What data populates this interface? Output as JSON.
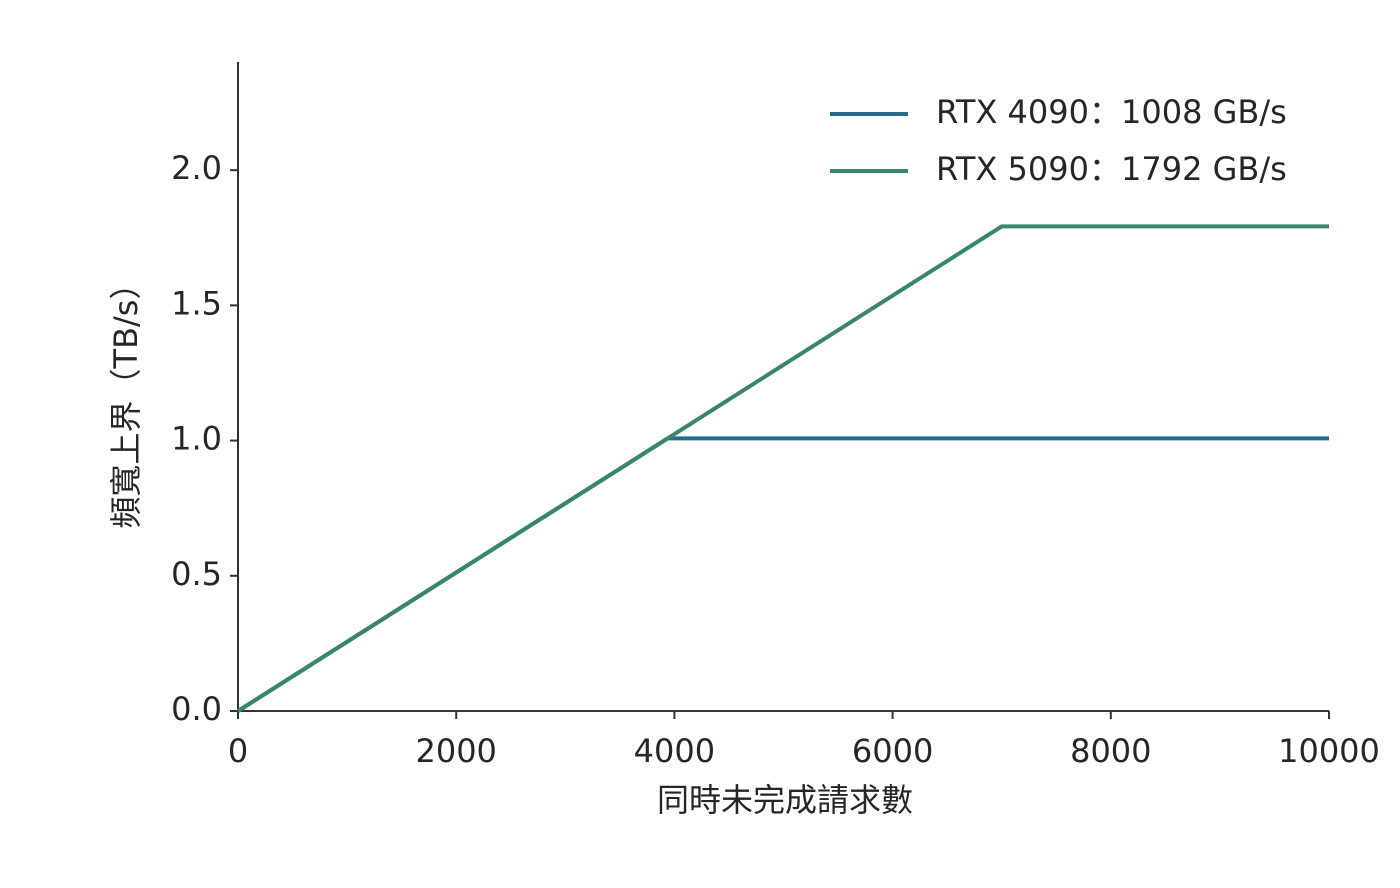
{
  "chart_data": {
    "type": "line",
    "xlabel": "同時未完成請求數",
    "ylabel": "頻寬上界（TB/s）",
    "xlim": [
      0,
      10000
    ],
    "xticks": [
      0,
      2000,
      4000,
      6000,
      8000,
      10000
    ],
    "ylim": [
      0,
      2.4
    ],
    "yticks": [
      {
        "value": 0,
        "label": "0.0"
      },
      0.5,
      {
        "value": 1,
        "label": "1.0"
      },
      1.5,
      {
        "value": 2,
        "label": "2.0"
      }
    ],
    "legend": "upper right",
    "series": [
      {
        "name": "RTX 4090：1008 GB/s",
        "color": "#2b6a8d",
        "x": [
          0,
          3937.5,
          10000
        ],
        "values": [
          0,
          1.008,
          1.008
        ]
      },
      {
        "name": "RTX 5090：1792 GB/s",
        "color": "#3a8668",
        "x": [
          0,
          7000,
          10000
        ],
        "values": [
          0,
          1.792,
          1.792
        ]
      }
    ]
  }
}
